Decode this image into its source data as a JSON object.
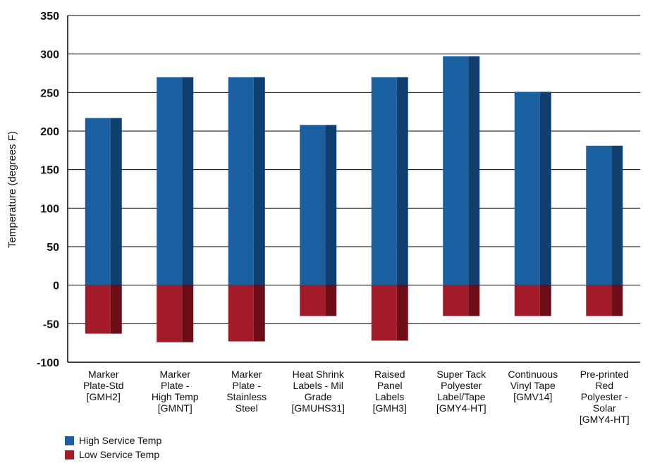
{
  "chart_data": {
    "type": "bar",
    "categories": [
      [
        "Marker",
        "Plate-Std",
        "[GMH2]"
      ],
      [
        "Marker",
        "Plate -",
        "High Temp",
        "[GMNT]"
      ],
      [
        "Marker",
        "Plate -",
        "Stainless",
        "Steel"
      ],
      [
        "Heat Shrink",
        "Labels - Mil",
        "Grade",
        "[GMUHS31]"
      ],
      [
        "Raised",
        "Panel",
        "Labels",
        "[GMH3]"
      ],
      [
        "Super Tack",
        "Polyester",
        "Label/Tape",
        "[GMY4-HT]"
      ],
      [
        "Continuous",
        "Vinyl Tape",
        "[GMV14]"
      ],
      [
        "Pre-printed",
        "Red",
        "Polyester -",
        "Solar",
        "[GMY4-HT]"
      ]
    ],
    "series": [
      {
        "name": "High Service Temp",
        "color": "#1a5fa0",
        "shade": "#0e3f6e",
        "values": [
          217,
          270,
          270,
          208,
          270,
          297,
          251,
          181
        ]
      },
      {
        "name": "Low Service Temp",
        "color": "#a31a28",
        "shade": "#6e0c17",
        "values": [
          -63,
          -74,
          -73,
          -40,
          -72,
          -40,
          -40,
          -40
        ]
      }
    ],
    "ylabel": "Temperature (degrees F)",
    "ylim": [
      -100,
      350
    ],
    "yticks": [
      "-100",
      "-50",
      "0",
      "50",
      "100",
      "150",
      "200",
      "250",
      "300",
      "350"
    ],
    "grid": true,
    "legend": "bottom-left"
  }
}
